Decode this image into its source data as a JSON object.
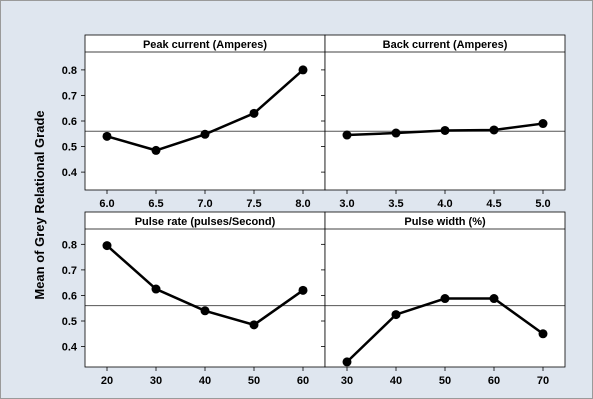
{
  "chart_data": {
    "type": "line",
    "y_axis_label": "Mean of Grey Relational Grade",
    "reference_line": 0.56,
    "panels": [
      {
        "title": "Peak current (Amperes)",
        "x": [
          6.0,
          6.5,
          7.0,
          7.5,
          8.0
        ],
        "x_tick_labels": [
          "6.0",
          "6.5",
          "7.0",
          "7.5",
          "8.0"
        ],
        "values": [
          0.54,
          0.485,
          0.548,
          0.63,
          0.8
        ],
        "y_ticks": [
          0.4,
          0.5,
          0.6,
          0.7,
          0.8
        ],
        "y_tick_labels": [
          "0.4",
          "0.5",
          "0.6",
          "0.7",
          "0.8"
        ],
        "ylim": [
          0.33,
          0.87
        ]
      },
      {
        "title": "Back current (Amperes)",
        "x": [
          3.0,
          3.5,
          4.0,
          4.5,
          5.0
        ],
        "x_tick_labels": [
          "3.0",
          "3.5",
          "4.0",
          "4.5",
          "5.0"
        ],
        "values": [
          0.545,
          0.553,
          0.563,
          0.565,
          0.59
        ],
        "y_ticks": [
          0.4,
          0.5,
          0.6,
          0.7,
          0.8
        ],
        "y_tick_labels": [],
        "ylim": [
          0.33,
          0.87
        ]
      },
      {
        "title": "Pulse rate (pulses/Second)",
        "x": [
          20,
          30,
          40,
          50,
          60
        ],
        "x_tick_labels": [
          "20",
          "30",
          "40",
          "50",
          "60"
        ],
        "values": [
          0.795,
          0.625,
          0.54,
          0.485,
          0.62
        ],
        "y_ticks": [
          0.4,
          0.5,
          0.6,
          0.7,
          0.8
        ],
        "y_tick_labels": [
          "0.4",
          "0.5",
          "0.6",
          "0.7",
          "0.8"
        ],
        "ylim": [
          0.32,
          0.86
        ]
      },
      {
        "title": "Pulse width (%)",
        "x": [
          30,
          40,
          50,
          60,
          70
        ],
        "x_tick_labels": [
          "30",
          "40",
          "50",
          "60",
          "70"
        ],
        "values": [
          0.34,
          0.525,
          0.588,
          0.588,
          0.45
        ],
        "y_ticks": [
          0.4,
          0.5,
          0.6,
          0.7,
          0.8
        ],
        "y_tick_labels": [],
        "ylim": [
          0.32,
          0.86
        ]
      }
    ]
  }
}
